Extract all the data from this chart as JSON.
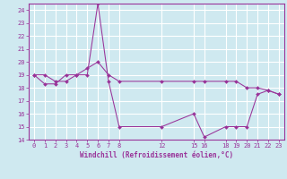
{
  "xlabel": "Windchill (Refroidissement éolien,°C)",
  "background_color": "#cfe9f0",
  "line_color": "#993399",
  "grid_color": "#ffffff",
  "xlim": [
    -0.5,
    23.5
  ],
  "ylim": [
    14,
    24.5
  ],
  "xticks": [
    0,
    1,
    2,
    3,
    4,
    5,
    6,
    7,
    8,
    12,
    15,
    16,
    18,
    19,
    20,
    21,
    22,
    23
  ],
  "yticks": [
    14,
    15,
    16,
    17,
    18,
    19,
    20,
    21,
    22,
    23,
    24
  ],
  "series": [
    {
      "x": [
        0,
        1,
        2,
        3,
        4,
        5,
        6,
        7,
        8,
        12,
        15,
        16,
        18,
        19,
        20,
        21,
        22,
        23
      ],
      "y": [
        19,
        19,
        18.5,
        18.5,
        19,
        19.5,
        20,
        19,
        18.5,
        18.5,
        18.5,
        18.5,
        18.5,
        18.5,
        18,
        18,
        17.8,
        17.5
      ]
    },
    {
      "x": [
        0,
        1,
        2,
        3,
        4,
        5,
        6,
        7,
        8,
        12,
        15,
        16,
        18,
        19,
        20,
        21,
        22,
        23
      ],
      "y": [
        19,
        18.3,
        18.3,
        19,
        19,
        19,
        24.5,
        18.5,
        15,
        15,
        16,
        14.2,
        15,
        15,
        15,
        17.5,
        17.8,
        17.5
      ]
    }
  ]
}
